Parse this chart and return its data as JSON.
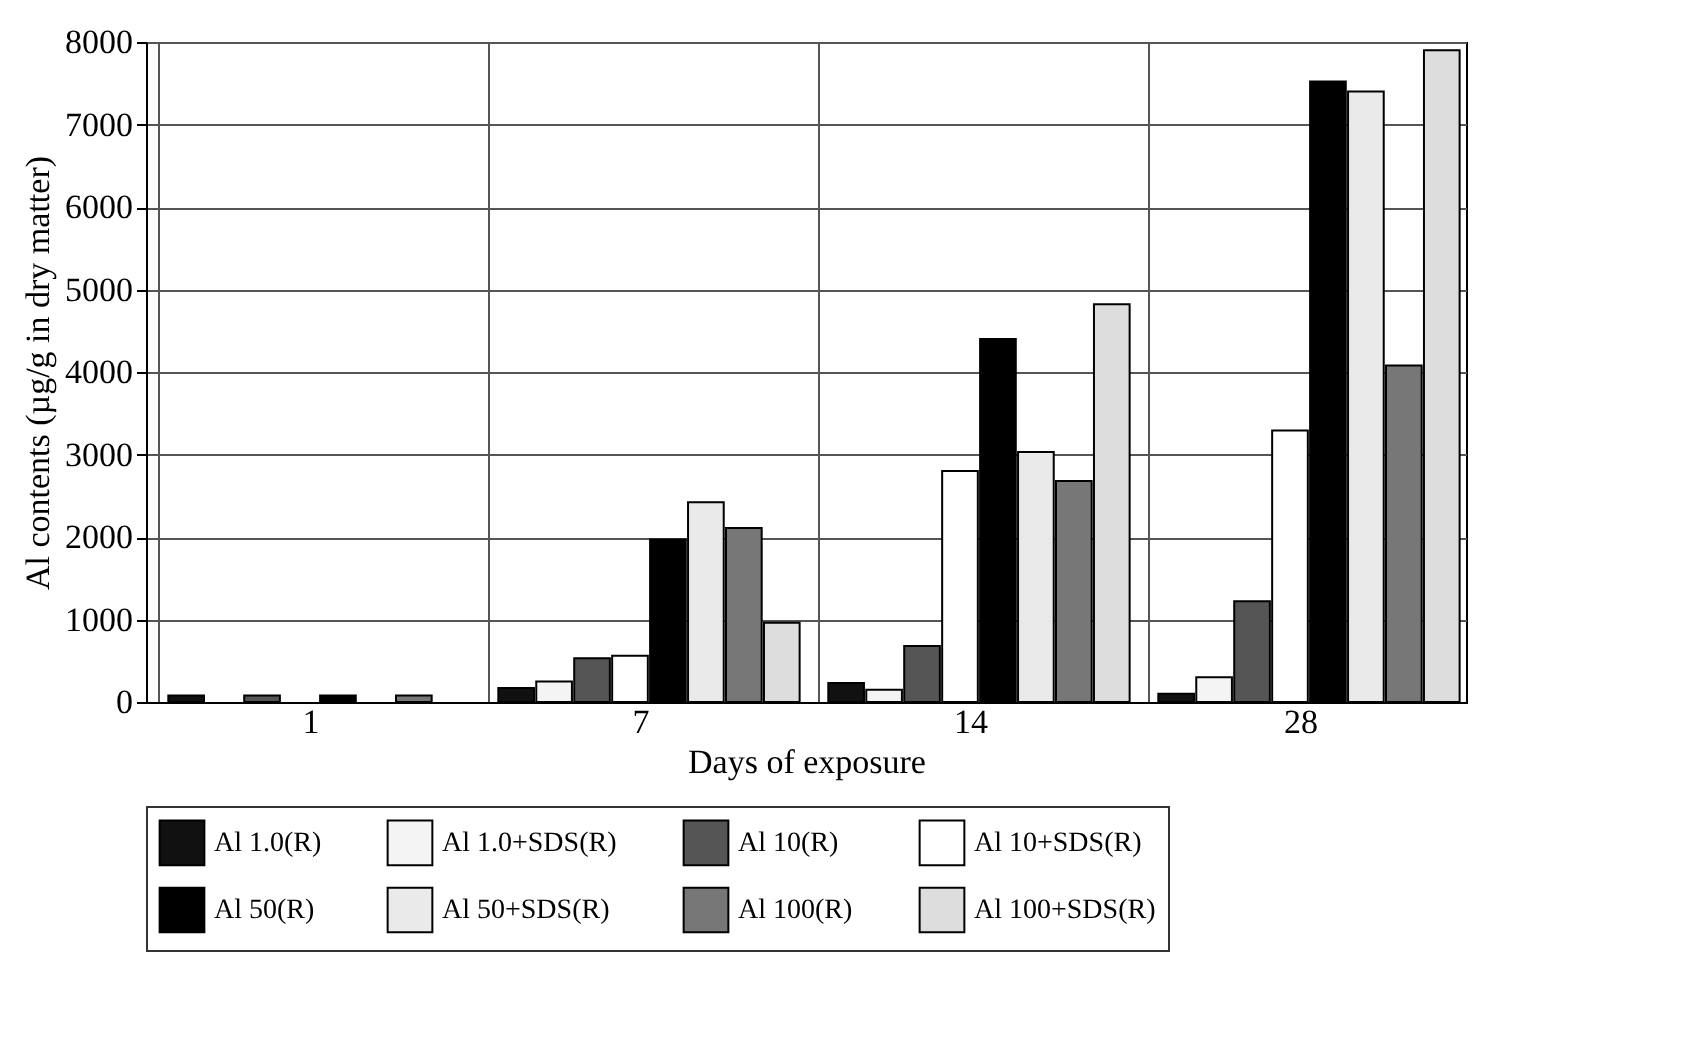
{
  "chart_data": {
    "type": "bar",
    "xlabel": "Days of exposure",
    "ylabel": "Al contents (µg/g in dry matter)",
    "categories": [
      "1",
      "7",
      "14",
      "28"
    ],
    "series": [
      {
        "name": "Al 1.0(R)",
        "color": "#111111",
        "values": [
          80,
          170,
          230,
          100
        ]
      },
      {
        "name": "Al 1.0+SDS(R)",
        "color": "#f4f4f4",
        "values": [
          null,
          250,
          150,
          300
        ]
      },
      {
        "name": "Al 10(R)",
        "color": "#555555",
        "values": [
          80,
          530,
          680,
          1220
        ]
      },
      {
        "name": "Al 10+SDS(R)",
        "color": "#ffffff",
        "values": [
          null,
          560,
          2800,
          3290
        ]
      },
      {
        "name": "Al 50(R)",
        "color": "#000000",
        "values": [
          80,
          1970,
          4400,
          7520
        ]
      },
      {
        "name": "Al 50+SDS(R)",
        "color": "#eaeaea",
        "values": [
          null,
          2420,
          3030,
          7400
        ]
      },
      {
        "name": "Al 100(R)",
        "color": "#777777",
        "values": [
          80,
          2110,
          2680,
          4080
        ]
      },
      {
        "name": "Al 100+SDS(R)",
        "color": "#dddddd",
        "values": [
          null,
          960,
          4820,
          7900
        ]
      }
    ],
    "ylim": [
      0,
      8000
    ],
    "yticks": [
      0,
      1000,
      2000,
      3000,
      4000,
      5000,
      6000,
      7000,
      8000
    ],
    "grid": true,
    "legend": "bottom"
  }
}
